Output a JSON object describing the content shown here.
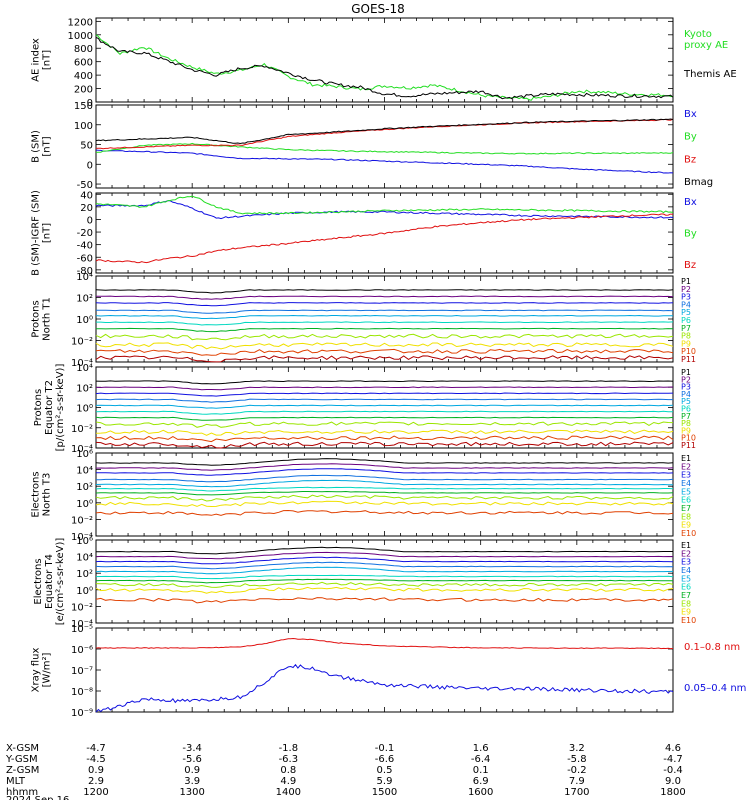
{
  "title": "GOES-18",
  "colors": {
    "black": "#000000",
    "green": "#22dd22",
    "red": "#e01010",
    "blue": "#1010e0",
    "P": [
      "#000000",
      "#6a0080",
      "#1010e0",
      "#1070e0",
      "#00a8e0",
      "#00d8c0",
      "#00b020",
      "#9ae600",
      "#f0e000",
      "#f0a000",
      "#e04000",
      "#b00000"
    ]
  },
  "panels": [
    {
      "id": "ae",
      "ylabel": [
        "AE index",
        "[nT]"
      ],
      "scale": "linear",
      "ylim": [
        0,
        1250
      ],
      "ticks": [
        "0",
        "200",
        "400",
        "600",
        "800",
        "1000",
        "1200"
      ],
      "tick_values": [
        0,
        200,
        400,
        600,
        800,
        1000,
        1200
      ],
      "legend": [
        {
          "label": "Kyoto",
          "color": "green"
        },
        {
          "label": "proxy AE",
          "color": "green"
        },
        {
          "label": "Themis AE",
          "color": "black"
        }
      ]
    },
    {
      "id": "b",
      "ylabel": [
        "B (SM)",
        "[nT]"
      ],
      "scale": "linear",
      "ylim": [
        -60,
        150
      ],
      "ticks": [
        "-50",
        "0",
        "50",
        "100",
        "150"
      ],
      "tick_values": [
        -50,
        0,
        50,
        100,
        150
      ],
      "legend": [
        {
          "label": "Bx",
          "color": "blue"
        },
        {
          "label": "By",
          "color": "green"
        },
        {
          "label": "Bz",
          "color": "red"
        },
        {
          "label": "Bmag",
          "color": "black"
        }
      ]
    },
    {
      "id": "db",
      "ylabel": [
        "B (SM)-IGRF (SM)",
        "[nT]"
      ],
      "scale": "linear",
      "ylim": [
        -85,
        42
      ],
      "ticks": [
        "-80",
        "-60",
        "-40",
        "-20",
        "0",
        "20",
        "40"
      ],
      "tick_values": [
        -80,
        -60,
        -40,
        -20,
        0,
        20,
        40
      ],
      "legend": [
        {
          "label": "Bx",
          "color": "blue"
        },
        {
          "label": "By",
          "color": "green"
        },
        {
          "label": "Bz",
          "color": "red"
        }
      ]
    },
    {
      "id": "pt1",
      "ylabel": [
        "Protons",
        "North T1"
      ],
      "scale": "log",
      "ylim": [
        -4,
        4
      ],
      "ticks": [
        "10⁻⁴",
        "10⁻²",
        "10⁰",
        "10²",
        "10⁴"
      ],
      "tick_values": [
        -4,
        -2,
        0,
        2,
        4
      ],
      "channels": [
        "P1",
        "P2",
        "P3",
        "P4",
        "P5",
        "P6",
        "P7",
        "P8",
        "P9",
        "P10",
        "P11"
      ]
    },
    {
      "id": "pt2",
      "ylabel": [
        "Protons",
        "Equator T2",
        "[p/(cm²-s-sr-keV)]"
      ],
      "scale": "log",
      "ylim": [
        -4,
        4
      ],
      "ticks": [
        "10⁻⁴",
        "10⁻²",
        "10⁰",
        "10²",
        "10⁴"
      ],
      "tick_values": [
        -4,
        -2,
        0,
        2,
        4
      ],
      "channels": [
        "P1",
        "P2",
        "P3",
        "P4",
        "P5",
        "P6",
        "P7",
        "P8",
        "P9",
        "P10",
        "P11"
      ]
    },
    {
      "id": "et3",
      "ylabel": [
        "Electrons",
        "North T3"
      ],
      "scale": "log",
      "ylim": [
        -4,
        6
      ],
      "ticks": [
        "10⁻⁴",
        "10⁻²",
        "10⁰",
        "10²",
        "10⁴",
        "10⁶"
      ],
      "tick_values": [
        -4,
        -2,
        0,
        2,
        4,
        6
      ],
      "channels": [
        "E1",
        "E2",
        "E3",
        "E4",
        "E5",
        "E6",
        "E7",
        "E8",
        "E9",
        "E10"
      ]
    },
    {
      "id": "et4",
      "ylabel": [
        "Electrons",
        "Equator T4",
        "[e/(cm²-s-sr-keV)]"
      ],
      "scale": "log",
      "ylim": [
        -4,
        6
      ],
      "ticks": [
        "10⁻⁴",
        "10⁻²",
        "10⁰",
        "10²",
        "10⁴",
        "10⁶"
      ],
      "tick_values": [
        -4,
        -2,
        0,
        2,
        4,
        6
      ],
      "channels": [
        "E1",
        "E2",
        "E3",
        "E4",
        "E5",
        "E6",
        "E7",
        "E8",
        "E9",
        "E10"
      ]
    },
    {
      "id": "xray",
      "ylabel": [
        "Xray flux",
        "[W/m²]"
      ],
      "scale": "log",
      "ylim": [
        -9,
        -5
      ],
      "ticks": [
        "10⁻⁹",
        "10⁻⁸",
        "10⁻⁷",
        "10⁻⁶",
        "10⁻⁵"
      ],
      "tick_values": [
        -9,
        -8,
        -7,
        -6,
        -5
      ],
      "legend": [
        {
          "label": "0.1–0.8 nm",
          "color": "red"
        },
        {
          "label": "0.05–0.4 nm",
          "color": "blue"
        }
      ]
    }
  ],
  "footer": {
    "row_labels": [
      "X-GSM",
      "Y-GSM",
      "Z-GSM",
      "MLT",
      "hhmm",
      "2024 Sep 16"
    ],
    "columns": [
      {
        "x": "-4.7",
        "y": "-4.5",
        "z": "0.9",
        "mlt": "2.9",
        "hhmm": "1200"
      },
      {
        "x": "-3.4",
        "y": "-5.6",
        "z": "0.9",
        "mlt": "3.9",
        "hhmm": "1300"
      },
      {
        "x": "-1.8",
        "y": "-6.3",
        "z": "0.8",
        "mlt": "4.9",
        "hhmm": "1400"
      },
      {
        "x": "-0.1",
        "y": "-6.6",
        "z": "0.5",
        "mlt": "5.9",
        "hhmm": "1500"
      },
      {
        "x": "1.6",
        "y": "-6.4",
        "z": "0.1",
        "mlt": "6.9",
        "hhmm": "1600"
      },
      {
        "x": "3.2",
        "y": "-5.8",
        "z": "-0.2",
        "mlt": "7.9",
        "hhmm": "1700"
      },
      {
        "x": "4.6",
        "y": "-4.7",
        "z": "-0.4",
        "mlt": "9.0",
        "hhmm": "1800"
      }
    ]
  },
  "chart_data": [
    {
      "type": "line",
      "panel": "ae",
      "x_hours": [
        12.0,
        12.25,
        12.5,
        12.75,
        13.0,
        13.25,
        13.5,
        13.75,
        14.0,
        14.25,
        14.5,
        14.75,
        15.0,
        15.25,
        15.5,
        15.75,
        16.0,
        16.25,
        16.5,
        16.75,
        17.0,
        17.25,
        17.5,
        17.75,
        18.0
      ],
      "series": [
        {
          "name": "Kyoto proxy AE",
          "color": "green",
          "values": [
            1000,
            720,
            820,
            650,
            520,
            420,
            470,
            560,
            380,
            260,
            230,
            190,
            240,
            210,
            250,
            180,
            100,
            60,
            40,
            90,
            160,
            150,
            120,
            110,
            100
          ]
        },
        {
          "name": "Themis AE",
          "color": "black",
          "values": [
            950,
            750,
            730,
            610,
            480,
            400,
            500,
            540,
            430,
            330,
            260,
            220,
            120,
            90,
            120,
            140,
            160,
            60,
            90,
            120,
            110,
            100,
            90,
            90,
            80
          ]
        }
      ]
    },
    {
      "type": "line",
      "panel": "b",
      "x_hours": [
        12.0,
        12.5,
        13.0,
        13.5,
        14.0,
        14.5,
        15.0,
        15.5,
        16.0,
        16.5,
        17.0,
        17.5,
        18.0
      ],
      "series": [
        {
          "name": "Bx",
          "color": "blue",
          "values": [
            35,
            32,
            28,
            15,
            14,
            12,
            8,
            4,
            0,
            -5,
            -12,
            -17,
            -22
          ]
        },
        {
          "name": "By",
          "color": "green",
          "values": [
            30,
            48,
            52,
            44,
            37,
            34,
            32,
            30,
            28,
            27,
            28,
            28,
            29
          ]
        },
        {
          "name": "Bz",
          "color": "red",
          "values": [
            40,
            44,
            48,
            48,
            70,
            80,
            88,
            95,
            100,
            105,
            108,
            110,
            113
          ]
        },
        {
          "name": "Bmag",
          "color": "black",
          "values": [
            60,
            64,
            68,
            52,
            75,
            82,
            90,
            96,
            101,
            106,
            109,
            111,
            114
          ]
        }
      ]
    },
    {
      "type": "line",
      "panel": "db",
      "x_hours": [
        12.0,
        12.5,
        12.75,
        13.0,
        13.25,
        13.5,
        14.0,
        14.5,
        15.0,
        15.5,
        16.0,
        16.5,
        17.0,
        17.5,
        18.0
      ],
      "series": [
        {
          "name": "Bx",
          "color": "blue",
          "values": [
            22,
            22,
            30,
            18,
            2,
            5,
            10,
            12,
            12,
            10,
            8,
            6,
            5,
            4,
            3
          ]
        },
        {
          "name": "By",
          "color": "green",
          "values": [
            25,
            20,
            30,
            38,
            20,
            10,
            10,
            12,
            14,
            15,
            16,
            15,
            14,
            13,
            12
          ]
        },
        {
          "name": "Bz",
          "color": "red",
          "values": [
            -65,
            -68,
            -62,
            -58,
            -50,
            -45,
            -38,
            -30,
            -22,
            -12,
            -5,
            0,
            3,
            6,
            8
          ]
        }
      ]
    },
    {
      "type": "line",
      "panel": "pt1",
      "x_hours": [
        12,
        18
      ],
      "y_scale": "log10",
      "series_levels_log10": [
        2.7,
        2.1,
        1.5,
        0.8,
        0.3,
        -0.3,
        -0.9,
        -1.6,
        -2.4,
        -3.0,
        -3.6
      ]
    },
    {
      "type": "line",
      "panel": "pt2",
      "x_hours": [
        12,
        18
      ],
      "y_scale": "log10",
      "series_levels_log10": [
        2.6,
        2.0,
        1.4,
        0.8,
        0.2,
        -0.4,
        -1.0,
        -1.6,
        -2.4,
        -3.0,
        -3.6
      ]
    },
    {
      "type": "line",
      "panel": "et3",
      "x_hours": [
        12,
        18
      ],
      "y_scale": "log10",
      "series_levels_log10": [
        4.8,
        4.2,
        3.6,
        2.8,
        2.2,
        1.7,
        1.2,
        0.6,
        -0.1,
        -1.2
      ]
    },
    {
      "type": "line",
      "panel": "et4",
      "x_hours": [
        12,
        18
      ],
      "y_scale": "log10",
      "series_levels_log10": [
        4.6,
        4.0,
        3.4,
        2.8,
        2.2,
        1.6,
        1.1,
        0.6,
        0.0,
        -1.2
      ]
    },
    {
      "type": "line",
      "panel": "xray",
      "x_hours": [
        12.0,
        12.5,
        13.0,
        13.5,
        13.75,
        14.0,
        14.25,
        14.5,
        15.0,
        15.5,
        16.0,
        16.5,
        17.0,
        17.5,
        18.0
      ],
      "series": [
        {
          "name": "0.1–0.8 nm",
          "color": "red",
          "values_log10": [
            -5.95,
            -5.95,
            -5.95,
            -5.9,
            -5.75,
            -5.5,
            -5.55,
            -5.7,
            -5.85,
            -5.9,
            -5.95,
            -5.95,
            -5.96,
            -5.96,
            -5.97
          ]
        },
        {
          "name": "0.05–0.4 nm",
          "color": "blue",
          "values_log10": [
            -9.0,
            -8.4,
            -8.5,
            -8.3,
            -7.6,
            -6.8,
            -6.9,
            -7.3,
            -7.7,
            -7.8,
            -7.9,
            -7.9,
            -7.95,
            -8.0,
            -8.05
          ]
        }
      ]
    }
  ]
}
